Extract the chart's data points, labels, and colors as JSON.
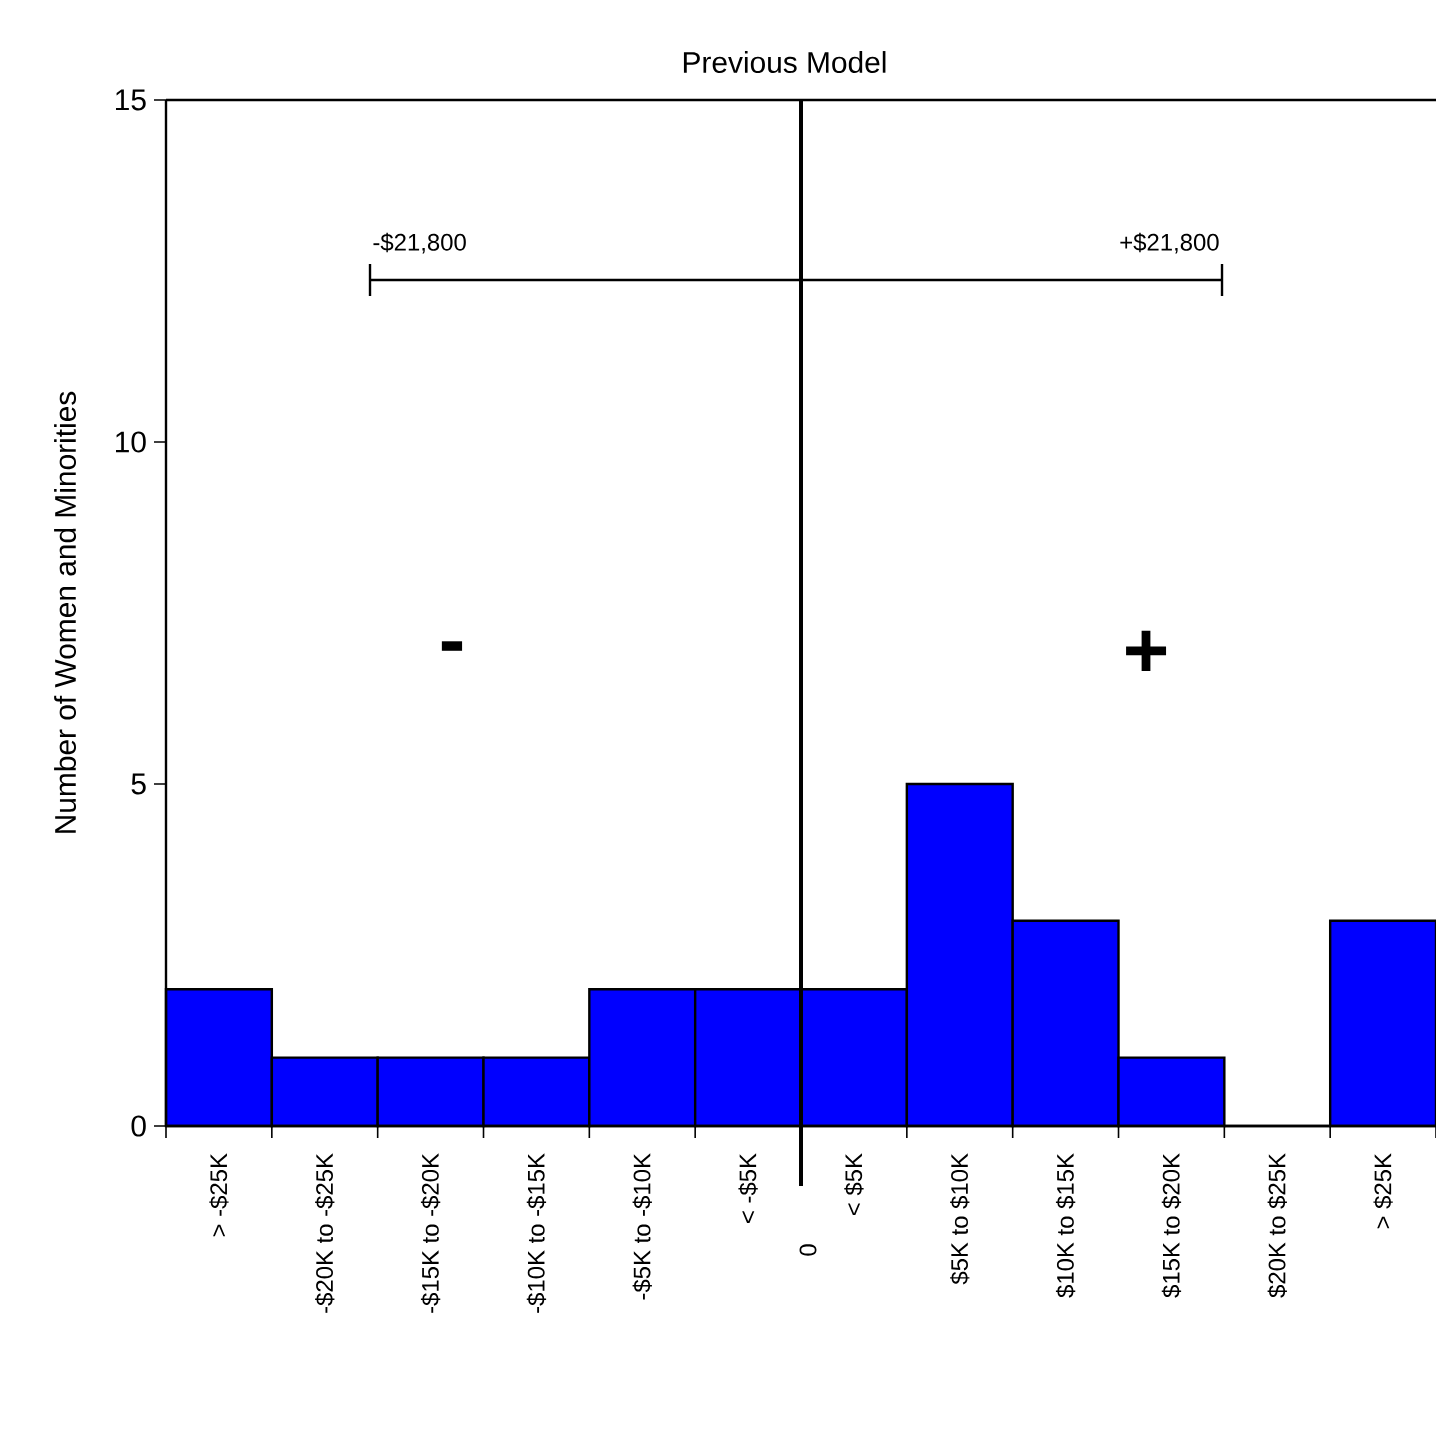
{
  "chart_data": {
    "type": "bar",
    "title": "Previous Model",
    "ylabel": "Number of Women and Minorities",
    "categories": [
      "> -$25K",
      "-$20K to -$25K",
      "-$15K to -$20K",
      "-$10K to -$15K",
      "-$5K to -$10K",
      "< -$5K",
      "< $5K",
      "$5K to $10K",
      "$10K to $15K",
      "$15K to $20K",
      "$20K to $25K",
      "> $25K"
    ],
    "values": [
      2,
      1,
      1,
      1,
      2,
      2,
      2,
      5,
      3,
      1,
      0,
      3
    ],
    "color": "#0000ff",
    "ylim": [
      0,
      15
    ],
    "yticks": [
      0,
      5,
      10,
      15
    ],
    "annotations": [
      "-$21,800",
      "+$21,800",
      "-",
      "+",
      "0"
    ]
  }
}
